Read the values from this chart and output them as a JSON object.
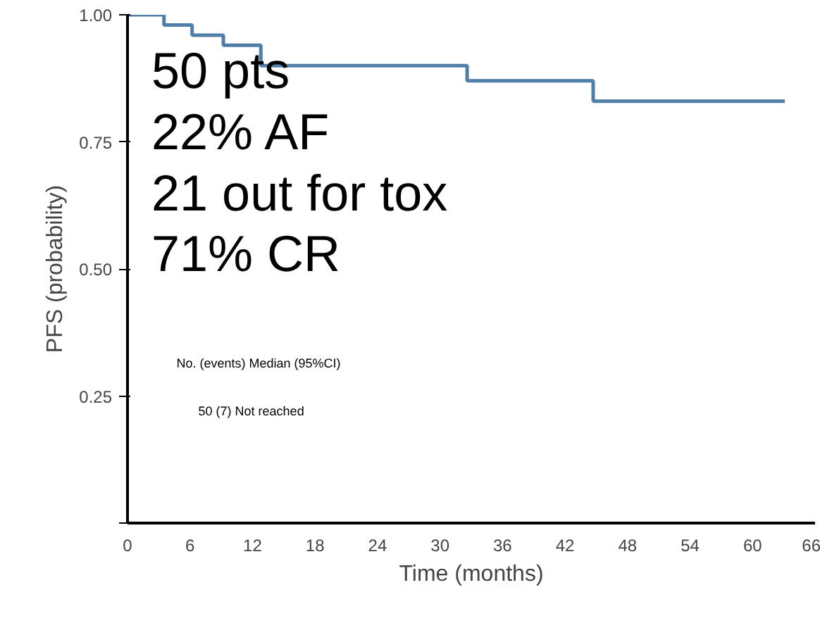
{
  "chart_data": {
    "type": "step",
    "xlabel": "Time (months)",
    "ylabel": "PFS (probability)",
    "x": [
      0,
      3.5,
      6.2,
      9.2,
      12.8,
      32.6,
      44.7,
      63.1
    ],
    "series": [
      {
        "color": "#4f7ea8",
        "values": [
          1.0,
          0.98,
          0.96,
          0.94,
          0.9,
          0.87,
          0.83,
          0.83
        ]
      }
    ],
    "xlim": [
      0,
      66
    ],
    "xticks": [
      0,
      6,
      12,
      18,
      24,
      30,
      36,
      42,
      48,
      54,
      60,
      66
    ],
    "ylim": [
      0,
      1
    ],
    "yticks": [
      {
        "value": 0,
        "label": null
      },
      0.25,
      {
        "value": 0.5,
        "label": "0.50"
      },
      0.75,
      {
        "value": 1,
        "label": "1.00"
      }
    ],
    "annotations": [
      "50 pts",
      "22% AF",
      "21 out for tox",
      "71% CR",
      "No. (events) Median (95%CI)",
      "50 (7) Not reached"
    ],
    "grid": false
  }
}
